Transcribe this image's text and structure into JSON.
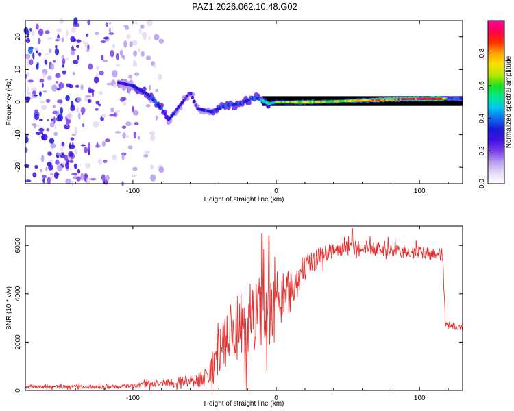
{
  "title": "PAZ1.2026.062.10.48.G02",
  "chart_data": [
    {
      "type": "heatmap",
      "xlabel": "Height of straight line (km)",
      "ylabel": "Frequency (Hz)",
      "xlim": [
        -175,
        130
      ],
      "ylim": [
        -25,
        25
      ],
      "x_ticks": [
        -100,
        0,
        100
      ],
      "y_ticks": [
        -20,
        -10,
        0,
        10,
        20
      ],
      "colorbar": {
        "label": "Normalized spectral amplitude",
        "range": [
          0.0,
          1.0
        ],
        "ticks": [
          "0.0",
          "0.2",
          "0.4",
          "0.6",
          "0.8"
        ],
        "tick_values": [
          0.0,
          0.2,
          0.4,
          0.6,
          0.8
        ],
        "colors": [
          "#ffffff",
          "#e6d8f6",
          "#b79bee",
          "#7a3fe8",
          "#4010e0",
          "#1a1ad8",
          "#0e6cf0",
          "#00c8ee",
          "#00e890",
          "#20e020",
          "#b8e800",
          "#ffe000",
          "#ffa000",
          "#ff3000",
          "#ff0050",
          "#ff00a0"
        ]
      },
      "ridge": [
        {
          "x": -110,
          "f": 6.0,
          "v": 0.25
        },
        {
          "x": -100,
          "f": 5.0,
          "v": 0.3
        },
        {
          "x": -90,
          "f": 2.5,
          "v": 0.35
        },
        {
          "x": -80,
          "f": -2.0,
          "v": 0.35
        },
        {
          "x": -75,
          "f": -5.5,
          "v": 0.3
        },
        {
          "x": -60,
          "f": 3.0,
          "v": 0.25
        },
        {
          "x": -55,
          "f": -2.0,
          "v": 0.3
        },
        {
          "x": -45,
          "f": -3.0,
          "v": 0.3
        },
        {
          "x": -35,
          "f": -1.0,
          "v": 0.35
        },
        {
          "x": -25,
          "f": -0.5,
          "v": 0.35
        },
        {
          "x": -15,
          "f": 1.5,
          "v": 0.35
        },
        {
          "x": -5,
          "f": -0.5,
          "v": 0.5
        },
        {
          "x": 0,
          "f": 0.0,
          "v": 0.6
        },
        {
          "x": 20,
          "f": 0.0,
          "v": 0.7
        },
        {
          "x": 40,
          "f": 0.2,
          "v": 0.6
        },
        {
          "x": 60,
          "f": 0.5,
          "v": 0.75
        },
        {
          "x": 80,
          "f": 0.8,
          "v": 0.85
        },
        {
          "x": 100,
          "f": 1.0,
          "v": 0.9
        },
        {
          "x": 115,
          "f": 1.0,
          "v": 0.95
        },
        {
          "x": 120,
          "f": 1.2,
          "v": 0.4
        },
        {
          "x": 130,
          "f": 1.0,
          "v": 0.3
        }
      ]
    },
    {
      "type": "line",
      "xlabel": "Height of straight line (km)",
      "ylabel": "SNR (10 * v/v)",
      "xlim": [
        -175,
        130
      ],
      "ylim": [
        0,
        6800
      ],
      "x_ticks": [
        -100,
        0,
        100
      ],
      "y_ticks": [
        0,
        2000,
        4000,
        6000
      ],
      "color": "#e83030",
      "envelope": {
        "x": [
          -175,
          -110,
          -80,
          -60,
          -50,
          -40,
          -30,
          -20,
          -10,
          0,
          10,
          20,
          30,
          40,
          50,
          60,
          80,
          100,
          116,
          118,
          120,
          130
        ],
        "mean": [
          150,
          150,
          300,
          400,
          500,
          1500,
          2400,
          2900,
          3300,
          3500,
          4200,
          5000,
          5600,
          5800,
          5900,
          5900,
          5800,
          5700,
          5600,
          2800,
          2700,
          2600
        ],
        "spread": [
          80,
          100,
          200,
          300,
          500,
          1400,
          1800,
          1900,
          1800,
          1500,
          1200,
          700,
          500,
          400,
          400,
          350,
          350,
          350,
          350,
          200,
          200,
          150
        ]
      },
      "peaks": [
        {
          "x": -10,
          "y": 6500
        },
        {
          "x": -5,
          "y": 6400
        },
        {
          "x": 53,
          "y": 6700
        }
      ]
    }
  ]
}
